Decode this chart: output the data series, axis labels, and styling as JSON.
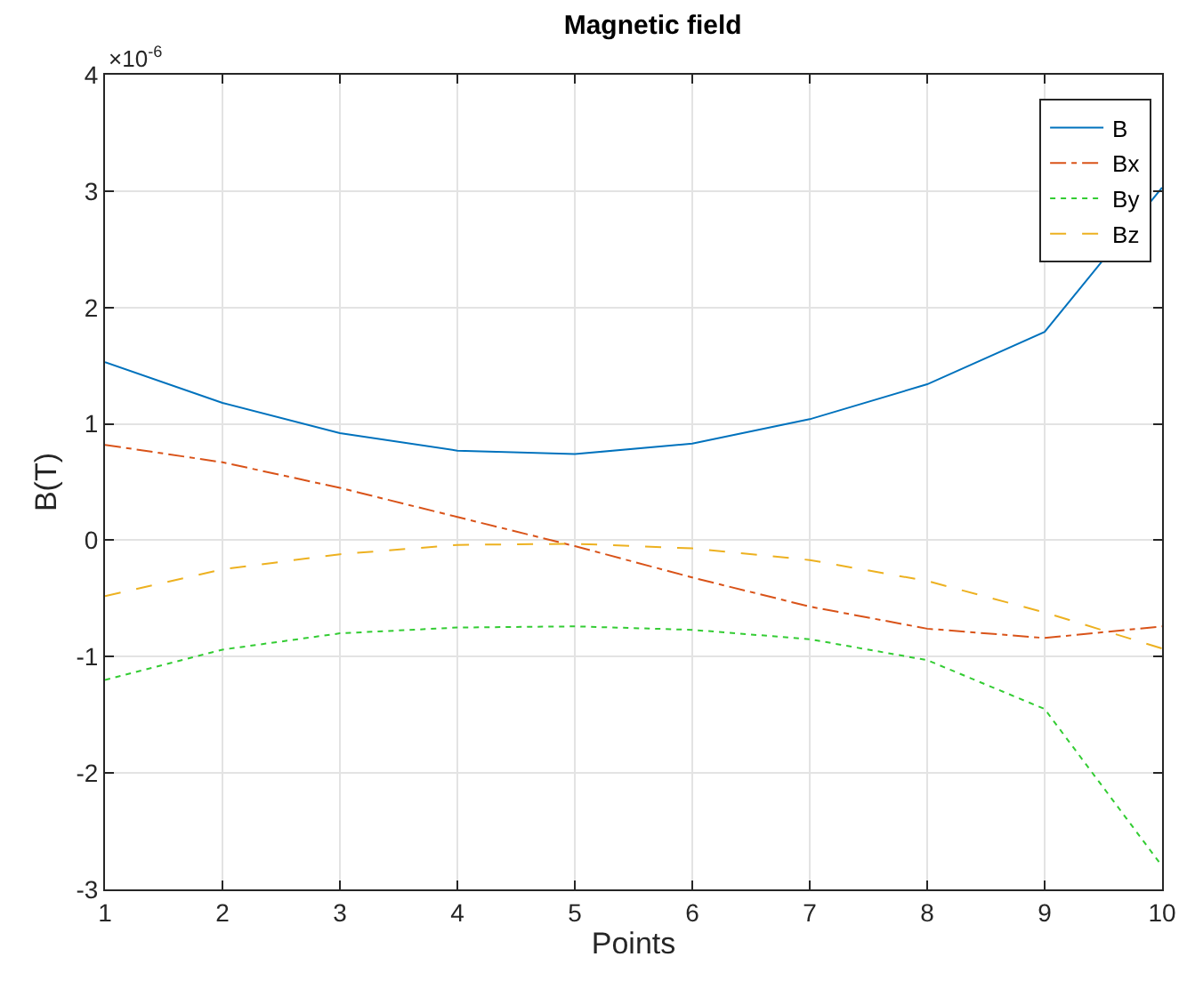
{
  "chart_data": {
    "type": "line",
    "title": "Magnetic field",
    "xlabel": "Points",
    "ylabel": "B(T)",
    "annotations": [
      "×10$^{-6}$"
    ],
    "x": [
      1,
      2,
      3,
      4,
      5,
      6,
      7,
      8,
      9,
      10
    ],
    "series": [
      {
        "name": "B",
        "color": "#0072bd",
        "line_style": "solid",
        "values": [
          1.53,
          1.18,
          0.92,
          0.77,
          0.74,
          0.83,
          1.04,
          1.34,
          1.79,
          3.03
        ]
      },
      {
        "name": "Bx",
        "color": "#d95319",
        "line_style": "dashdot",
        "values": [
          0.82,
          0.67,
          0.45,
          0.2,
          -0.05,
          -0.32,
          -0.57,
          -0.76,
          -0.84,
          -0.74
        ]
      },
      {
        "name": "By",
        "color": "#33cc33",
        "line_style": "dotted",
        "values": [
          -1.2,
          -0.94,
          -0.8,
          -0.75,
          -0.74,
          -0.77,
          -0.85,
          -1.03,
          -1.45,
          -2.8
        ]
      },
      {
        "name": "Bz",
        "color": "#edb120",
        "line_style": "dashed",
        "values": [
          -0.48,
          -0.25,
          -0.12,
          -0.04,
          -0.03,
          -0.07,
          -0.17,
          -0.35,
          -0.62,
          -0.93
        ]
      }
    ],
    "xlim": [
      1,
      10
    ],
    "xticks": [
      1,
      2,
      3,
      4,
      5,
      6,
      7,
      8,
      9,
      10
    ],
    "ylim": [
      -3,
      4
    ],
    "yticks": [
      -3,
      -2,
      -1,
      0,
      1,
      2,
      3,
      4
    ],
    "grid": true,
    "legend": "top right",
    "marker": "none"
  }
}
